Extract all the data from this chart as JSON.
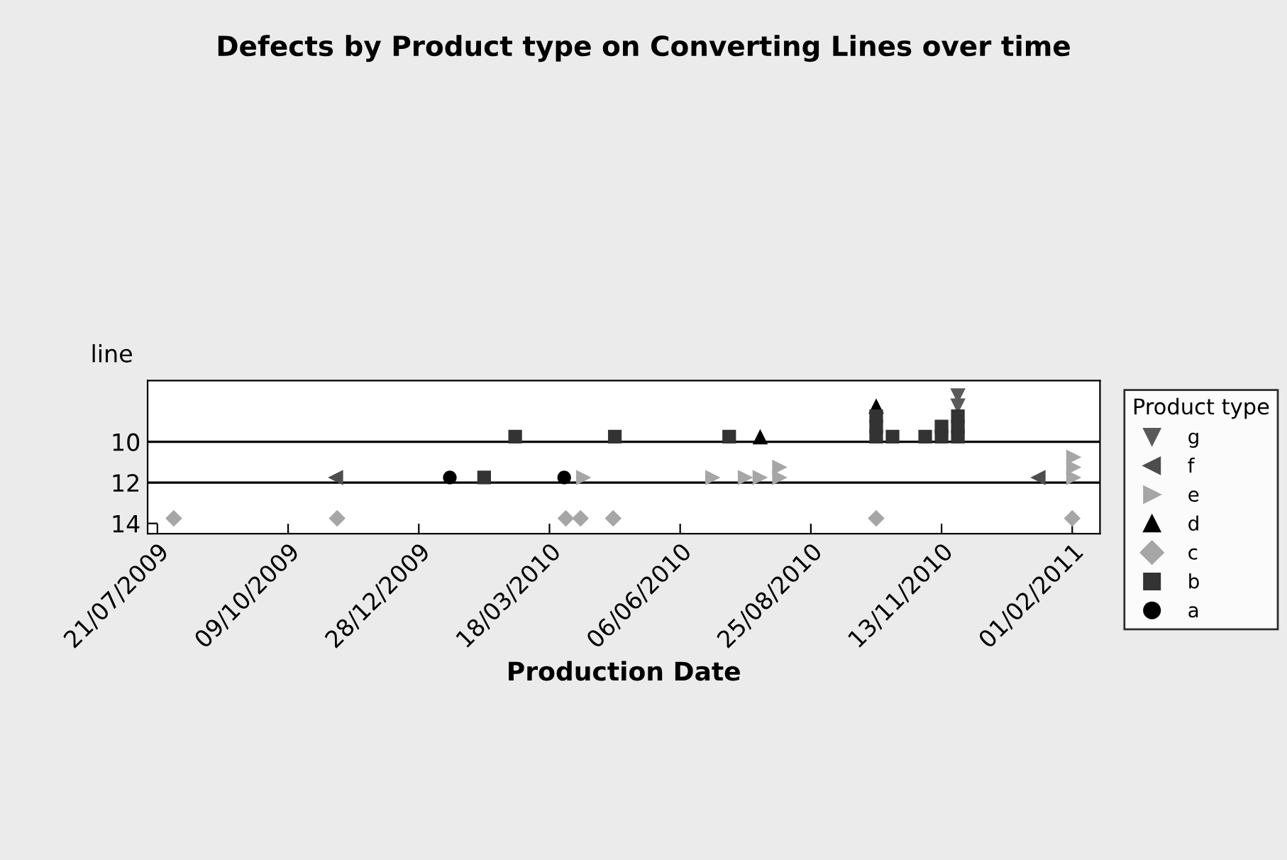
{
  "chart_data": {
    "type": "scatter",
    "title": "Defects by Product type on Converting Lines over time",
    "xlabel": "Production Date",
    "ylabel": "line",
    "legend_title": "Product type",
    "legend": "right",
    "xlim": [
      "2009-07-15",
      "2011-02-18"
    ],
    "xticks": [
      {
        "value": "2009-07-21",
        "label": "21/07/2009"
      },
      {
        "value": "2009-10-09",
        "label": "09/10/2009"
      },
      {
        "value": "2009-12-28",
        "label": "28/12/2009"
      },
      {
        "value": "2010-03-18",
        "label": "18/03/2010"
      },
      {
        "value": "2010-06-06",
        "label": "06/06/2010"
      },
      {
        "value": "2010-08-25",
        "label": "25/08/2010"
      },
      {
        "value": "2010-11-13",
        "label": "13/11/2010"
      },
      {
        "value": "2011-02-01",
        "label": "01/02/2011"
      }
    ],
    "ylim": [
      14.5,
      7.0
    ],
    "yticks": [
      10,
      12,
      14
    ],
    "ref_lines": [
      {
        "axis": "y",
        "value": 10,
        "color": "#000000"
      },
      {
        "axis": "y",
        "value": 12,
        "color": "#000000"
      }
    ],
    "series": [
      {
        "name": "g",
        "color": "#5a5a5a",
        "marker": "triangle_down",
        "x": [
          "2010-11-23",
          "2010-11-23"
        ],
        "values": [
          8.25,
          7.75
        ]
      },
      {
        "name": "f",
        "color": "#4d4d4d",
        "marker": "triangle_left",
        "x": [
          "2009-11-07",
          "2011-01-11"
        ],
        "values": [
          11.75,
          11.75
        ]
      },
      {
        "name": "e",
        "color": "#a6a6a6",
        "marker": "triangle_right",
        "x": [
          "2010-04-08",
          "2010-06-26",
          "2010-07-16",
          "2010-07-25",
          "2010-08-06",
          "2010-08-06",
          "2011-02-02",
          "2011-02-02",
          "2011-02-02"
        ],
        "values": [
          11.75,
          11.75,
          11.75,
          11.75,
          11.75,
          11.25,
          11.75,
          11.25,
          10.75
        ]
      },
      {
        "name": "d",
        "color": "#000000",
        "marker": "triangle",
        "x": [
          "2010-07-25",
          "2010-10-04"
        ],
        "values": [
          9.75,
          8.25
        ]
      },
      {
        "name": "c",
        "color": "#a6a6a6",
        "marker": "diamond",
        "x": [
          "2009-07-31",
          "2009-11-08",
          "2010-03-28",
          "2010-04-06",
          "2010-04-26",
          "2010-10-04",
          "2011-02-01"
        ],
        "values": [
          13.75,
          13.75,
          13.75,
          13.75,
          13.75,
          13.75,
          13.75
        ]
      },
      {
        "name": "b",
        "color": "#333333",
        "marker": "square",
        "x": [
          "2010-02-06",
          "2010-02-25",
          "2010-04-27",
          "2010-07-06",
          "2010-10-04",
          "2010-10-04",
          "2010-10-04",
          "2010-10-14",
          "2010-11-03",
          "2010-11-13",
          "2010-11-13",
          "2010-11-23",
          "2010-11-23",
          "2010-11-23"
        ],
        "values": [
          11.75,
          9.75,
          9.75,
          9.75,
          9.75,
          9.25,
          8.75,
          9.75,
          9.75,
          9.75,
          9.25,
          9.75,
          9.25,
          8.75
        ]
      },
      {
        "name": "a",
        "color": "#000000",
        "marker": "circle",
        "x": [
          "2010-01-16",
          "2010-03-27"
        ],
        "values": [
          11.75,
          11.75
        ]
      }
    ]
  }
}
